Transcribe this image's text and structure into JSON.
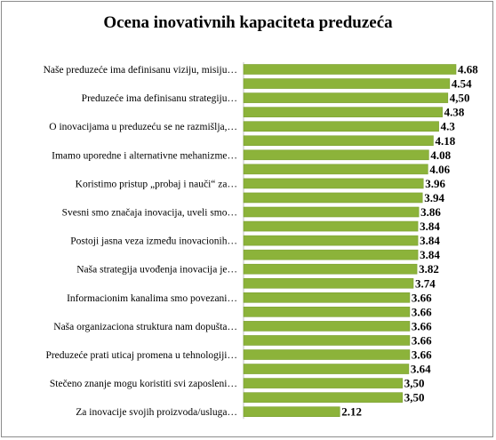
{
  "chart_data": {
    "type": "bar",
    "orientation": "horizontal",
    "title": "Ocena inovativnih kapaciteta preduzeća",
    "bar_color": "#8cb33a",
    "bar_edge_color": "#7a9f30",
    "grid": false,
    "legend": "none",
    "xlim": [
      0,
      4.68
    ],
    "category_labels": [
      "Naše preduzeće ima definisanu viziju, misiju…",
      "Preduzeće ima definisanu strategiju…",
      "O inovacijama u preduzeću se ne razmišlja,…",
      "Imamo uporedne i alternativne mehanizme…",
      "Koristimo  pristup „probaj i nauči“ za…",
      "Svesni smo značaja inovacija, uveli smo…",
      "Postoji jasna veza između inovacionih…",
      "Naša strategija uvođenja inovacija je…",
      "Informacionim kanalima smo povezani…",
      "Naša organizaciona struktura nam dopušta…",
      "Preduzeće prati uticaj promena u tehnologiji…",
      "Stečeno znanje mogu koristiti svi zaposleni…",
      "Za inovacije  svojih proizvoda/usluga…"
    ],
    "values": [
      4.68,
      4.54,
      4.5,
      4.38,
      4.3,
      4.18,
      4.08,
      4.06,
      3.96,
      3.94,
      3.86,
      3.84,
      3.84,
      3.84,
      3.82,
      3.74,
      3.66,
      3.66,
      3.66,
      3.66,
      3.66,
      3.64,
      3.5,
      3.5,
      2.12
    ],
    "value_labels": [
      "4.68",
      "4.54",
      "4,50",
      "4.38",
      "4.3",
      "4.18",
      "4.08",
      "4.06",
      "3.96",
      "3.94",
      "3.86",
      "3.84",
      "3.84",
      "3.84",
      "3.82",
      "3.74",
      "3.66",
      "3.66",
      "3.66",
      "3.66",
      "3.66",
      "3.64",
      "3,50",
      "3,50",
      "2.12"
    ]
  }
}
